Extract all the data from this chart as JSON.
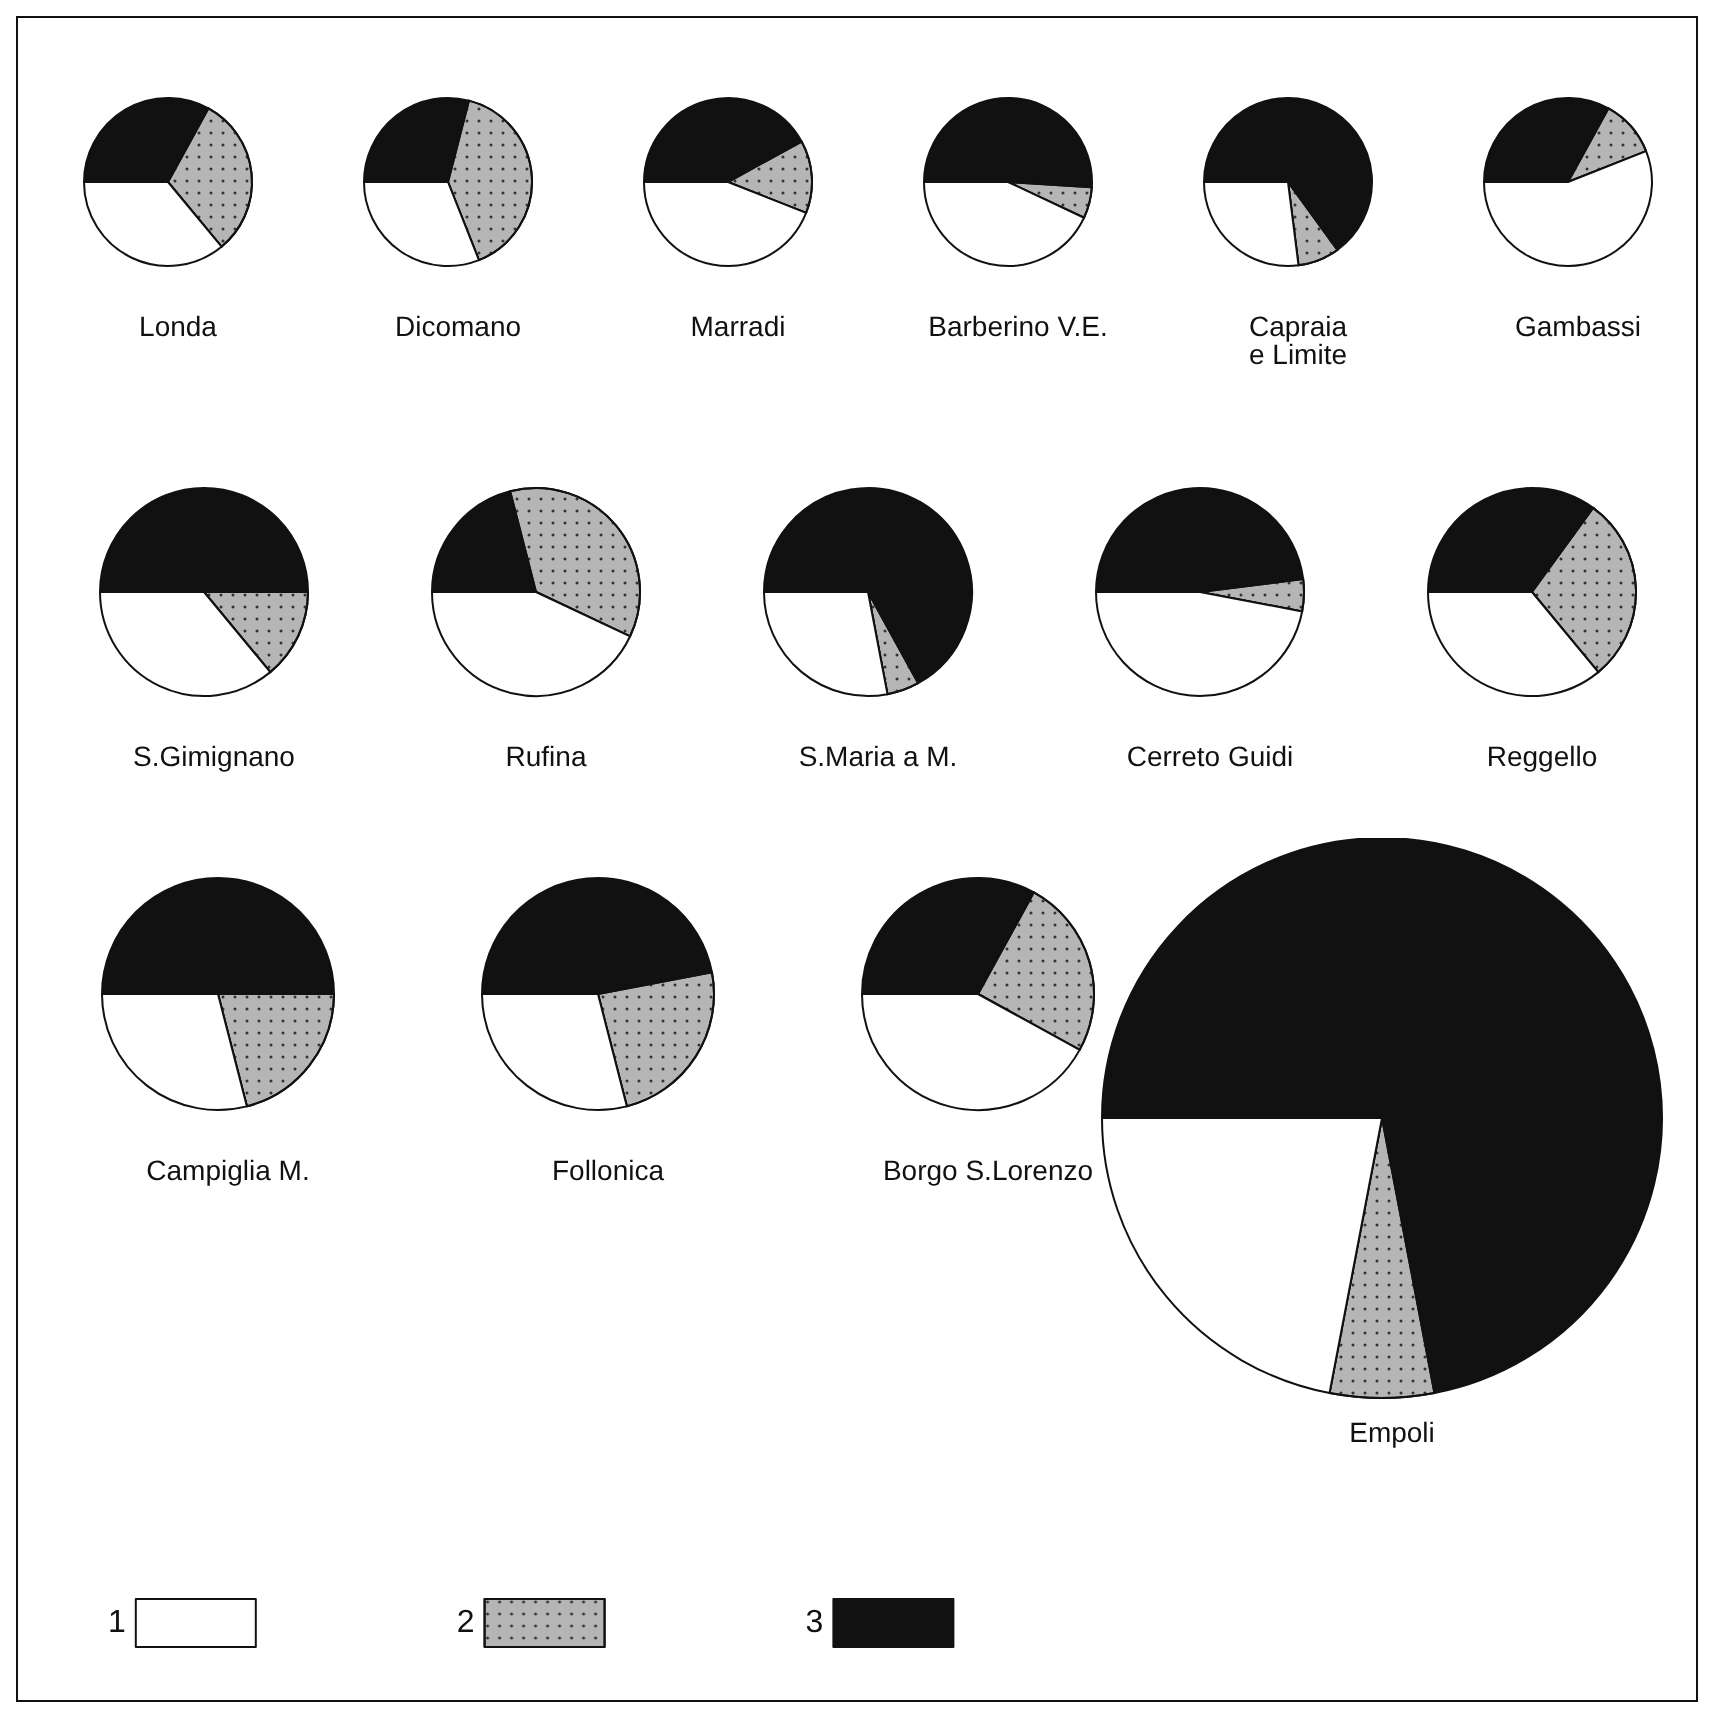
{
  "chart_data": [
    {
      "type": "pie",
      "title": "Londa",
      "categories": [
        null,
        null,
        null
      ],
      "values": [
        36,
        31,
        33
      ],
      "colors": [
        "#ffffff",
        "#b5b5b5",
        "#111111"
      ]
    },
    {
      "type": "pie",
      "title": "Dicomano",
      "categories": [
        null,
        null,
        null
      ],
      "values": [
        31,
        40,
        29
      ],
      "colors": [
        "#ffffff",
        "#b5b5b5",
        "#111111"
      ]
    },
    {
      "type": "pie",
      "title": "Marradi",
      "categories": [
        null,
        null,
        null
      ],
      "values": [
        44,
        14,
        42
      ],
      "colors": [
        "#ffffff",
        "#b5b5b5",
        "#111111"
      ]
    },
    {
      "type": "pie",
      "title": "Barberino V.E.",
      "categories": [
        null,
        null,
        null
      ],
      "values": [
        43,
        6,
        51
      ],
      "colors": [
        "#ffffff",
        "#b5b5b5",
        "#111111"
      ]
    },
    {
      "type": "pie",
      "title": "Capraia\ne Limite",
      "categories": [
        null,
        null,
        null
      ],
      "values": [
        27,
        8,
        65
      ],
      "colors": [
        "#ffffff",
        "#b5b5b5",
        "#111111"
      ]
    },
    {
      "type": "pie",
      "title": "Gambassi",
      "categories": [
        null,
        null,
        null
      ],
      "values": [
        56,
        11,
        33
      ],
      "colors": [
        "#ffffff",
        "#b5b5b5",
        "#111111"
      ]
    },
    {
      "type": "pie",
      "title": "S.Gimignano",
      "categories": [
        null,
        null,
        null
      ],
      "values": [
        36,
        14,
        50
      ],
      "colors": [
        "#ffffff",
        "#b5b5b5",
        "#111111"
      ]
    },
    {
      "type": "pie",
      "title": "Rufina",
      "categories": [
        null,
        null,
        null
      ],
      "values": [
        43,
        36,
        21
      ],
      "colors": [
        "#ffffff",
        "#b5b5b5",
        "#111111"
      ]
    },
    {
      "type": "pie",
      "title": "S.Maria a M.",
      "categories": [
        null,
        null,
        null
      ],
      "values": [
        28,
        5,
        67
      ],
      "colors": [
        "#ffffff",
        "#b5b5b5",
        "#111111"
      ]
    },
    {
      "type": "pie",
      "title": "Cerreto Guidi",
      "categories": [
        null,
        null,
        null
      ],
      "values": [
        47,
        5,
        48
      ],
      "colors": [
        "#ffffff",
        "#b5b5b5",
        "#111111"
      ]
    },
    {
      "type": "pie",
      "title": "Reggello",
      "categories": [
        null,
        null,
        null
      ],
      "values": [
        36,
        29,
        35
      ],
      "colors": [
        "#ffffff",
        "#b5b5b5",
        "#111111"
      ]
    },
    {
      "type": "pie",
      "title": "Campiglia M.",
      "categories": [
        null,
        null,
        null
      ],
      "values": [
        29,
        21,
        50
      ],
      "colors": [
        "#ffffff",
        "#b5b5b5",
        "#111111"
      ]
    },
    {
      "type": "pie",
      "title": "Follonica",
      "categories": [
        null,
        null,
        null
      ],
      "values": [
        29,
        24,
        47
      ],
      "colors": [
        "#ffffff",
        "#b5b5b5",
        "#111111"
      ]
    },
    {
      "type": "pie",
      "title": "Borgo S.Lorenzo",
      "categories": [
        null,
        null,
        null
      ],
      "values": [
        42,
        25,
        33
      ],
      "colors": [
        "#ffffff",
        "#b5b5b5",
        "#111111"
      ]
    },
    {
      "type": "pie",
      "title": "Empoli",
      "categories": [
        "1",
        "2",
        "3"
      ],
      "values": [
        22,
        6,
        72
      ],
      "colors": [
        "#ffffff",
        "#b5b5b5",
        "#111111"
      ],
      "legend": "bottom"
    }
  ]
}
